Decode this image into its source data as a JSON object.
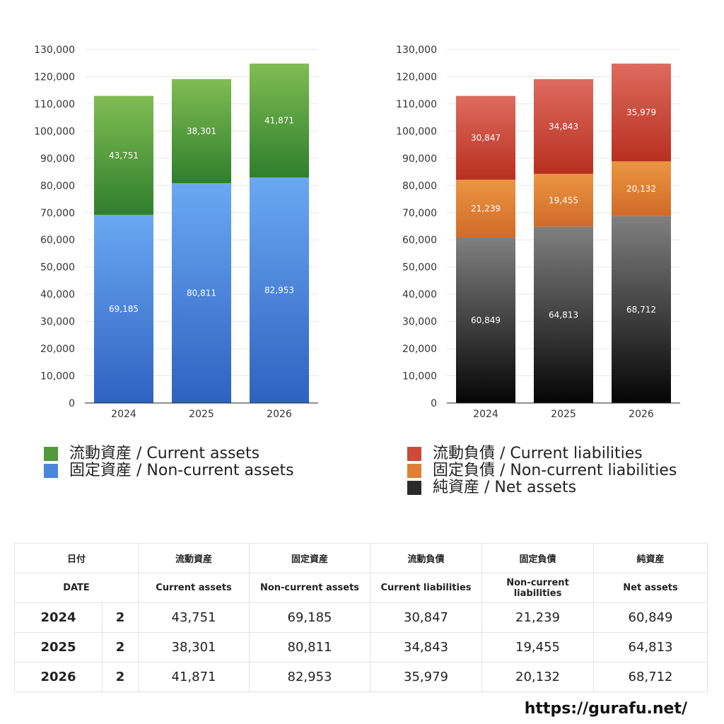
{
  "chart_data": [
    {
      "type": "bar",
      "stacked": true,
      "categories": [
        "2024",
        "2025",
        "2026"
      ],
      "series": [
        {
          "name": "固定資産 / Non-current assets",
          "values": [
            69185,
            80811,
            82953
          ],
          "color_top": "#6aa8f2",
          "color_bottom": "#2e62c0"
        },
        {
          "name": "流動資産 / Current assets",
          "values": [
            43751,
            38301,
            41871
          ],
          "color_top": "#80bd52",
          "color_bottom": "#2f7f2c"
        }
      ],
      "value_labels": [
        [
          "69,185",
          "80,811",
          "82,953"
        ],
        [
          "43,751",
          "38,301",
          "41,871"
        ]
      ],
      "ylim": [
        0,
        130000
      ],
      "y_ticks": [
        "0",
        "10,000",
        "20,000",
        "30,000",
        "40,000",
        "50,000",
        "60,000",
        "70,000",
        "80,000",
        "90,000",
        "100,000",
        "110,000",
        "120,000",
        "130,000"
      ],
      "grid": true,
      "legend": "bottom"
    },
    {
      "type": "bar",
      "stacked": true,
      "categories": [
        "2024",
        "2025",
        "2026"
      ],
      "series": [
        {
          "name": "純資産 / Net assets",
          "values": [
            60849,
            64813,
            68712
          ],
          "color_top": "#808080",
          "color_bottom": "#050505"
        },
        {
          "name": "固定負債 / Non-current liabilities",
          "values": [
            21239,
            19455,
            20132
          ],
          "color_top": "#eb9640",
          "color_bottom": "#d06a2a"
        },
        {
          "name": "流動負債 / Current liabilities",
          "values": [
            30847,
            34843,
            35979
          ],
          "color_top": "#de6b5e",
          "color_bottom": "#b8301f"
        }
      ],
      "value_labels": [
        [
          "60,849",
          "64,813",
          "68,712"
        ],
        [
          "21,239",
          "19,455",
          "20,132"
        ],
        [
          "30,847",
          "34,843",
          "35,979"
        ]
      ],
      "ylim": [
        0,
        130000
      ],
      "y_ticks": [
        "0",
        "10,000",
        "20,000",
        "30,000",
        "40,000",
        "50,000",
        "60,000",
        "70,000",
        "80,000",
        "90,000",
        "100,000",
        "110,000",
        "120,000",
        "130,000"
      ],
      "grid": true,
      "legend": "bottom"
    }
  ],
  "legend_left": [
    {
      "label": "流動資産 / Current assets",
      "color": "#4f9a3a"
    },
    {
      "label": "固定資産 / Non-current assets",
      "color": "#4a86dc"
    }
  ],
  "legend_right": [
    {
      "label": "流動負債 / Current liabilities",
      "color": "#cc4a3a"
    },
    {
      "label": "固定負債 / Non-current liabilities",
      "color": "#e07f33"
    },
    {
      "label": "純資産 / Net assets",
      "color": "#2a2a2a"
    }
  ],
  "table": {
    "header_jp": [
      "日付",
      "流動資産",
      "固定資産",
      "流動負債",
      "固定負債",
      "純資産"
    ],
    "header_en": [
      "DATE",
      "Current assets",
      "Non-current assets",
      "Current liabilities",
      "Non-current liabilities",
      "Net assets"
    ],
    "rows": [
      {
        "year": "2024",
        "qty": "2",
        "values": [
          "43,751",
          "69,185",
          "30,847",
          "21,239",
          "60,849"
        ]
      },
      {
        "year": "2025",
        "qty": "2",
        "values": [
          "38,301",
          "80,811",
          "34,843",
          "19,455",
          "64,813"
        ]
      },
      {
        "year": "2026",
        "qty": "2",
        "values": [
          "41,871",
          "82,953",
          "35,979",
          "20,132",
          "68,712"
        ]
      }
    ]
  },
  "footer_url": "https://gurafu.net/"
}
